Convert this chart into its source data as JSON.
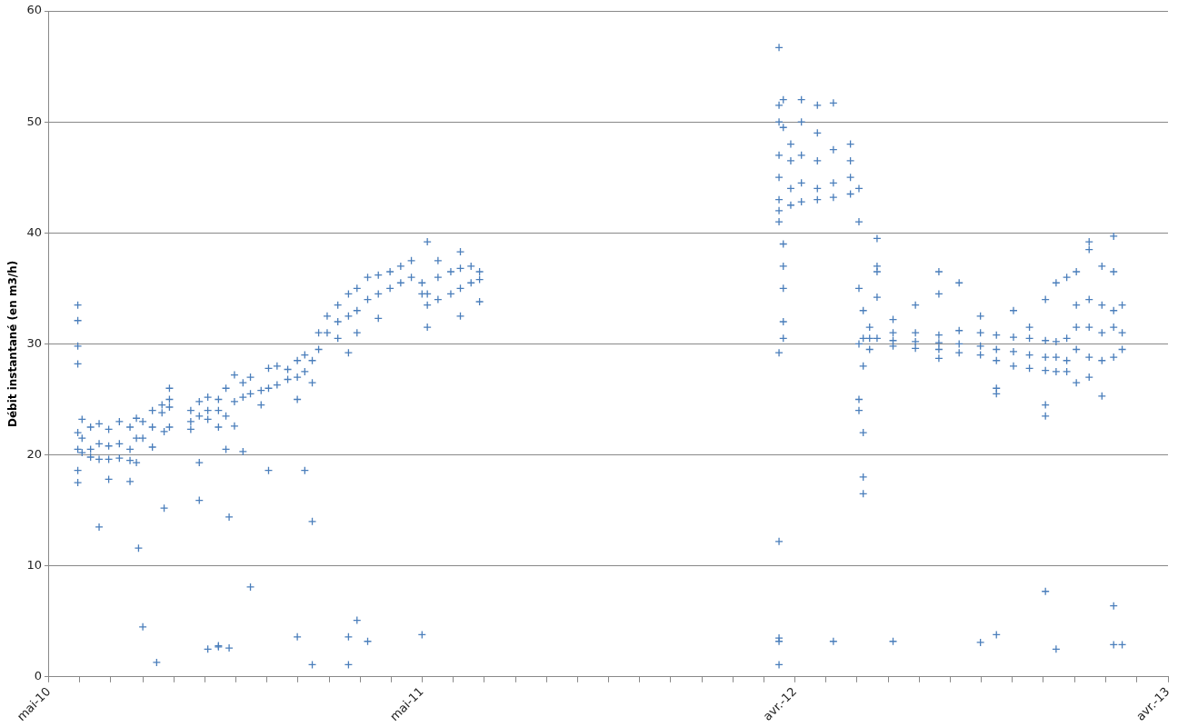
{
  "chart_data": {
    "type": "scatter",
    "ylabel": "Débit instantané (en m3/h)",
    "color": "#4a7ebb",
    "marker": "cross",
    "grid": "y",
    "xlim": [
      "2010-05-20",
      "2013-04-04"
    ],
    "xticks": [
      {
        "value": "2010-05-20",
        "label": "mai-10"
      },
      {
        "value": "2010-06-18",
        "label": null
      },
      {
        "value": "2010-07-17",
        "label": null
      },
      {
        "value": "2010-08-16",
        "label": null
      },
      {
        "value": "2010-09-14",
        "label": null
      },
      {
        "value": "2010-10-13",
        "label": null
      },
      {
        "value": "2010-11-11",
        "label": null
      },
      {
        "value": "2010-12-10",
        "label": null
      },
      {
        "value": "2011-01-08",
        "label": null
      },
      {
        "value": "2011-02-07",
        "label": null
      },
      {
        "value": "2011-03-08",
        "label": null
      },
      {
        "value": "2011-04-06",
        "label": null
      },
      {
        "value": "2011-05-05",
        "label": "mai-11"
      },
      {
        "value": "2011-06-03",
        "label": null
      },
      {
        "value": "2011-07-02",
        "label": null
      },
      {
        "value": "2011-08-01",
        "label": null
      },
      {
        "value": "2011-08-30",
        "label": null
      },
      {
        "value": "2011-09-28",
        "label": null
      },
      {
        "value": "2011-10-27",
        "label": null
      },
      {
        "value": "2011-11-25",
        "label": null
      },
      {
        "value": "2011-12-24",
        "label": null
      },
      {
        "value": "2012-01-23",
        "label": null
      },
      {
        "value": "2012-02-21",
        "label": null
      },
      {
        "value": "2012-03-21",
        "label": null
      },
      {
        "value": "2012-04-19",
        "label": "avr.-12"
      },
      {
        "value": "2012-05-18",
        "label": null
      },
      {
        "value": "2012-06-16",
        "label": null
      },
      {
        "value": "2012-07-16",
        "label": null
      },
      {
        "value": "2012-08-14",
        "label": null
      },
      {
        "value": "2012-09-12",
        "label": null
      },
      {
        "value": "2012-10-11",
        "label": null
      },
      {
        "value": "2012-11-09",
        "label": null
      },
      {
        "value": "2012-12-08",
        "label": null
      },
      {
        "value": "2013-01-07",
        "label": null
      },
      {
        "value": "2013-02-05",
        "label": null
      },
      {
        "value": "2013-03-06",
        "label": null
      },
      {
        "value": "2013-04-04",
        "label": "avr.-13"
      }
    ],
    "ylim": [
      0,
      60
    ],
    "yticks": [
      0,
      10,
      20,
      30,
      40,
      50,
      60
    ],
    "x": [
      "2010-06-16",
      "2010-06-16",
      "2010-06-16",
      "2010-06-16",
      "2010-06-16",
      "2010-06-16",
      "2010-06-16",
      "2010-06-16",
      "2010-06-20",
      "2010-06-20",
      "2010-06-20",
      "2010-06-28",
      "2010-06-28",
      "2010-06-28",
      "2010-07-06",
      "2010-07-06",
      "2010-07-06",
      "2010-07-06",
      "2010-07-15",
      "2010-07-15",
      "2010-07-15",
      "2010-07-15",
      "2010-07-25",
      "2010-07-25",
      "2010-07-25",
      "2010-08-04",
      "2010-08-04",
      "2010-08-04",
      "2010-08-04",
      "2010-08-10",
      "2010-08-10",
      "2010-08-10",
      "2010-08-12",
      "2010-08-16",
      "2010-08-16",
      "2010-08-16",
      "2010-08-25",
      "2010-08-25",
      "2010-08-25",
      "2010-08-29",
      "2010-09-03",
      "2010-09-03",
      "2010-09-05",
      "2010-09-05",
      "2010-09-10",
      "2010-09-10",
      "2010-09-10",
      "2010-09-10",
      "2010-09-30",
      "2010-09-30",
      "2010-09-30",
      "2010-10-08",
      "2010-10-08",
      "2010-10-08",
      "2010-10-08",
      "2010-10-16",
      "2010-10-16",
      "2010-10-16",
      "2010-10-16",
      "2010-10-26",
      "2010-10-26",
      "2010-10-26",
      "2010-10-26",
      "2010-10-26",
      "2010-11-02",
      "2010-11-02",
      "2010-11-02",
      "2010-11-05",
      "2010-11-05",
      "2010-11-10",
      "2010-11-10",
      "2010-11-10",
      "2010-11-18",
      "2010-11-18",
      "2010-11-18",
      "2010-11-25",
      "2010-11-25",
      "2010-11-25",
      "2010-12-05",
      "2010-12-05",
      "2010-12-12",
      "2010-12-12",
      "2010-12-12",
      "2010-12-20",
      "2010-12-20",
      "2010-12-30",
      "2010-12-30",
      "2011-01-08",
      "2011-01-08",
      "2011-01-08",
      "2011-01-08",
      "2011-01-15",
      "2011-01-15",
      "2011-01-15",
      "2011-01-22",
      "2011-01-22",
      "2011-01-22",
      "2011-01-22",
      "2011-01-28",
      "2011-01-28",
      "2011-02-05",
      "2011-02-05",
      "2011-02-15",
      "2011-02-15",
      "2011-02-15",
      "2011-02-25",
      "2011-02-25",
      "2011-02-25",
      "2011-02-25",
      "2011-02-25",
      "2011-03-05",
      "2011-03-05",
      "2011-03-05",
      "2011-03-05",
      "2011-03-15",
      "2011-03-15",
      "2011-03-15",
      "2011-03-25",
      "2011-03-25",
      "2011-03-25",
      "2011-04-05",
      "2011-04-05",
      "2011-04-15",
      "2011-04-15",
      "2011-04-25",
      "2011-04-25",
      "2011-05-05",
      "2011-05-05",
      "2011-05-05",
      "2011-05-10",
      "2011-05-10",
      "2011-05-10",
      "2011-05-10",
      "2011-05-20",
      "2011-05-20",
      "2011-05-20",
      "2011-06-01",
      "2011-06-01",
      "2011-06-10",
      "2011-06-10",
      "2011-06-10",
      "2011-06-10",
      "2011-06-20",
      "2011-06-20",
      "2011-06-28",
      "2011-06-28",
      "2011-06-28",
      "2012-04-04",
      "2012-04-04",
      "2012-04-04",
      "2012-04-04",
      "2012-04-04",
      "2012-04-04",
      "2012-04-04",
      "2012-04-04",
      "2012-04-04",
      "2012-04-04",
      "2012-04-04",
      "2012-04-04",
      "2012-04-04",
      "2012-04-08",
      "2012-04-08",
      "2012-04-08",
      "2012-04-08",
      "2012-04-08",
      "2012-04-08",
      "2012-04-08",
      "2012-04-15",
      "2012-04-15",
      "2012-04-15",
      "2012-04-15",
      "2012-04-25",
      "2012-04-25",
      "2012-04-25",
      "2012-04-25",
      "2012-04-25",
      "2012-05-10",
      "2012-05-10",
      "2012-05-10",
      "2012-05-10",
      "2012-05-10",
      "2012-05-25",
      "2012-05-25",
      "2012-05-25",
      "2012-05-25",
      "2012-05-25",
      "2012-06-10",
      "2012-06-10",
      "2012-06-10",
      "2012-06-10",
      "2012-06-18",
      "2012-06-18",
      "2012-06-18",
      "2012-06-18",
      "2012-06-18",
      "2012-06-18",
      "2012-06-22",
      "2012-06-22",
      "2012-06-22",
      "2012-06-22",
      "2012-06-22",
      "2012-06-22",
      "2012-06-28",
      "2012-06-28",
      "2012-06-28",
      "2012-07-05",
      "2012-07-05",
      "2012-07-05",
      "2012-07-05",
      "2012-07-05",
      "2012-07-20",
      "2012-07-20",
      "2012-07-20",
      "2012-07-20",
      "2012-07-20",
      "2012-08-10",
      "2012-08-10",
      "2012-08-10",
      "2012-08-10",
      "2012-09-01",
      "2012-09-01",
      "2012-09-01",
      "2012-09-01",
      "2012-09-01",
      "2012-09-01",
      "2012-09-20",
      "2012-09-20",
      "2012-09-20",
      "2012-09-20",
      "2012-10-10",
      "2012-10-10",
      "2012-10-10",
      "2012-10-10",
      "2012-10-10",
      "2012-10-25",
      "2012-10-25",
      "2012-10-25",
      "2012-10-25",
      "2012-10-25",
      "2012-10-25",
      "2012-11-10",
      "2012-11-10",
      "2012-11-10",
      "2012-11-10",
      "2012-11-25",
      "2012-11-25",
      "2012-11-25",
      "2012-11-25",
      "2012-12-10",
      "2012-12-10",
      "2012-12-10",
      "2012-12-10",
      "2012-12-10",
      "2012-12-10",
      "2012-12-10",
      "2012-12-20",
      "2012-12-20",
      "2012-12-20",
      "2012-12-20",
      "2012-12-20",
      "2012-12-30",
      "2012-12-30",
      "2012-12-30",
      "2012-12-30",
      "2013-01-08",
      "2013-01-08",
      "2013-01-08",
      "2013-01-08",
      "2013-01-08",
      "2013-01-20",
      "2013-01-20",
      "2013-01-20",
      "2013-01-20",
      "2013-01-20",
      "2013-01-20",
      "2013-02-01",
      "2013-02-01",
      "2013-02-01",
      "2013-02-01",
      "2013-02-01",
      "2013-02-12",
      "2013-02-12",
      "2013-02-12",
      "2013-02-12",
      "2013-02-12",
      "2013-02-12",
      "2013-02-12",
      "2013-02-20",
      "2013-02-20",
      "2013-02-20",
      "2013-02-20"
    ],
    "values": [
      33.5,
      32.1,
      29.8,
      28.2,
      22.0,
      20.5,
      18.6,
      17.5,
      21.5,
      23.2,
      20.2,
      20.5,
      22.5,
      19.8,
      21.0,
      22.8,
      19.6,
      13.5,
      20.8,
      22.3,
      19.6,
      17.8,
      21.0,
      23.0,
      19.7,
      20.5,
      22.5,
      19.5,
      17.6,
      21.5,
      23.3,
      19.3,
      11.6,
      23.0,
      21.5,
      4.5,
      24.0,
      22.5,
      20.7,
      1.3,
      24.5,
      23.8,
      15.2,
      22.1,
      25.0,
      26.0,
      24.3,
      22.5,
      23.0,
      24.0,
      22.3,
      23.5,
      24.8,
      15.9,
      19.3,
      24.0,
      25.2,
      23.2,
      2.5,
      24.0,
      25.0,
      22.5,
      2.7,
      2.8,
      23.5,
      26.0,
      20.5,
      2.6,
      14.4,
      24.8,
      27.2,
      22.6,
      25.2,
      26.5,
      20.3,
      25.5,
      27.0,
      8.1,
      25.8,
      24.5,
      26.0,
      27.8,
      18.6,
      26.3,
      28.0,
      26.8,
      27.7,
      27.0,
      28.5,
      25.0,
      3.6,
      27.5,
      29.0,
      18.6,
      28.5,
      26.5,
      14.0,
      1.1,
      29.5,
      31.0,
      31.0,
      32.5,
      32.0,
      33.5,
      30.5,
      32.5,
      34.5,
      29.2,
      3.6,
      1.1,
      33.0,
      35.0,
      31.0,
      5.1,
      34.0,
      36.0,
      3.2,
      34.5,
      36.2,
      32.3,
      35.0,
      36.5,
      35.5,
      37.0,
      36.0,
      37.5,
      35.5,
      34.5,
      3.8,
      34.5,
      33.5,
      31.5,
      39.2,
      34.0,
      36.0,
      37.5,
      34.5,
      36.5,
      35.0,
      36.8,
      38.3,
      32.5,
      35.5,
      37.0,
      35.8,
      36.5,
      33.8,
      41,
      42,
      43,
      45,
      47,
      50,
      51.5,
      56.7,
      29.2,
      12.2,
      3.5,
      3.2,
      1.1,
      39,
      37,
      35,
      32,
      30.5,
      49.5,
      52,
      44,
      46.5,
      42.5,
      48,
      44.5,
      47,
      42.8,
      52,
      50,
      44,
      46.5,
      43,
      51.5,
      49,
      44.5,
      47.5,
      43.2,
      3.2,
      51.7,
      45,
      46.5,
      43.5,
      48,
      44,
      41,
      35,
      30,
      25,
      24,
      28,
      22,
      18,
      16.5,
      30.5,
      33,
      30.5,
      31.5,
      29.5,
      37,
      36.5,
      34.2,
      30.5,
      39.5,
      30.3,
      31.0,
      29.8,
      32.2,
      3.2,
      30.2,
      31.0,
      29.6,
      33.5,
      30.1,
      30.8,
      29.5,
      34.5,
      36.5,
      28.7,
      30.0,
      31.2,
      29.2,
      35.5,
      29.8,
      31.0,
      29.0,
      32.5,
      3.1,
      29.5,
      30.8,
      28.5,
      26.0,
      25.5,
      3.8,
      29.3,
      30.6,
      28.0,
      33.0,
      29.0,
      30.5,
      27.8,
      31.5,
      28.8,
      30.3,
      27.6,
      34.0,
      24.5,
      23.5,
      7.7,
      28.8,
      30.2,
      27.5,
      35.5,
      2.5,
      28.5,
      30.5,
      27.5,
      36.0,
      31.5,
      33.5,
      29.5,
      36.5,
      26.5,
      31.5,
      34.0,
      28.8,
      38.5,
      39.2,
      27.0,
      31.0,
      33.5,
      28.5,
      37.0,
      25.3,
      31.5,
      33.0,
      28.8,
      36.5,
      2.9,
      6.4,
      39.7,
      31.0,
      33.5,
      29.5,
      2.9
    ]
  }
}
